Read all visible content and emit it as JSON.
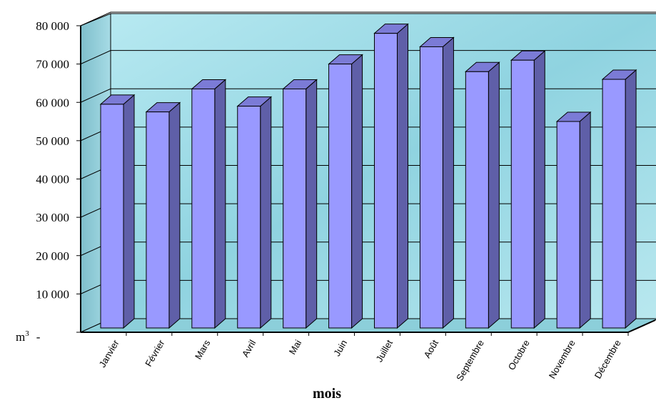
{
  "chart_data": {
    "type": "bar",
    "categories": [
      "Janvier",
      "Février",
      "Mars",
      "Avril",
      "Mai",
      "Juin",
      "Juillet",
      "Août",
      "Septembre",
      "Octobre",
      "Novembre",
      "Décembre"
    ],
    "values": [
      61000,
      59000,
      65000,
      60500,
      65000,
      71500,
      79500,
      76000,
      69500,
      72500,
      56500,
      67500
    ],
    "title": "",
    "xlabel": "mois",
    "ylabel": "",
    "y_unit_label": "m",
    "y_unit_superscript": "3",
    "y_zero_label": "-",
    "ylim": [
      0,
      80000
    ],
    "yticks": [
      "80 000",
      "70 000",
      "60 000",
      "50 000",
      "40 000",
      "30 000",
      "20 000",
      "10 000"
    ],
    "grid": true,
    "style": "3d-column",
    "colors": {
      "bar_front": "#9999ff",
      "bar_side": "#5f5fa8",
      "bar_top": "#7b7bd6",
      "wall": "#9fdbe6",
      "floor": "#8ccfda"
    }
  }
}
